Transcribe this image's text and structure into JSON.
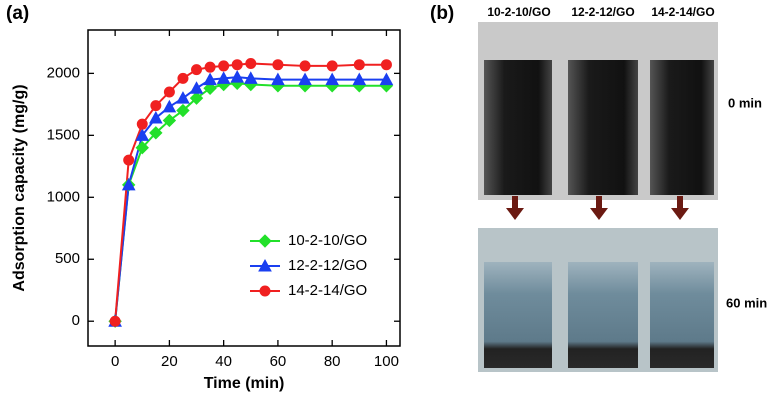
{
  "chart_data": {
    "type": "line",
    "xlabel": "Time (min)",
    "ylabel": "Adsorption capacity (mg/g)",
    "x": [
      0,
      5,
      10,
      15,
      20,
      25,
      30,
      35,
      40,
      45,
      50,
      60,
      70,
      80,
      90,
      100
    ],
    "series": [
      {
        "name": "10-2-10/GO",
        "color": "#22e02a",
        "marker": "diamond",
        "values": [
          0,
          1100,
          1400,
          1520,
          1620,
          1700,
          1800,
          1880,
          1910,
          1920,
          1910,
          1900,
          1900,
          1900,
          1900,
          1900
        ]
      },
      {
        "name": "12-2-12/GO",
        "color": "#1a3ff0",
        "marker": "triangle",
        "values": [
          0,
          1100,
          1500,
          1640,
          1730,
          1800,
          1880,
          1950,
          1960,
          1970,
          1960,
          1950,
          1950,
          1950,
          1950,
          1950
        ]
      },
      {
        "name": "14-2-14/GO",
        "color": "#f02020",
        "marker": "circle",
        "values": [
          0,
          1300,
          1590,
          1740,
          1850,
          1960,
          2030,
          2050,
          2060,
          2070,
          2080,
          2070,
          2060,
          2060,
          2070,
          2070
        ]
      }
    ],
    "xlim": [
      -10,
      105
    ],
    "xticks": [
      0,
      20,
      40,
      60,
      80,
      100
    ],
    "ylim": [
      -200,
      2350
    ],
    "yticks": [
      0,
      500,
      1000,
      1500,
      2000
    ],
    "legend": "lower right"
  },
  "panel_labels": [
    "(a)",
    "(b)"
  ],
  "photos": {
    "samples": [
      "10-2-10/GO",
      "12-2-12/GO",
      "14-2-14/GO"
    ],
    "times": [
      "0 min",
      "60 min"
    ]
  }
}
